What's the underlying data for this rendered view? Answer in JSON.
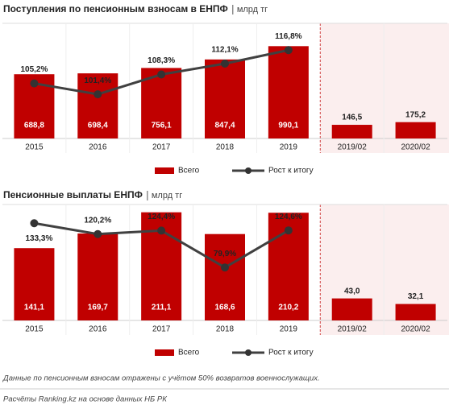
{
  "chart_data": [
    {
      "type": "bar_line",
      "title": "Поступления по пенсионным взносам в ЕНПФ",
      "unit": "млрд тг",
      "categories": [
        "2015",
        "2016",
        "2017",
        "2018",
        "2019",
        "2019/02",
        "2020/02"
      ],
      "ylim": [
        0,
        1200
      ],
      "y2lim": [
        86,
        125
      ],
      "series": [
        {
          "name": "Всего",
          "type": "bar",
          "color": "#c00000",
          "values": [
            688.8,
            698.4,
            756.1,
            847.4,
            990.1,
            146.5,
            175.2
          ],
          "value_labels": [
            "688,8",
            "698,4",
            "756,1",
            "847,4",
            "990,1",
            "146,5",
            "175,2"
          ]
        },
        {
          "name": "Рост к итогу",
          "type": "line",
          "axis": "y2",
          "color": "#404040",
          "values": [
            105.2,
            101.4,
            108.3,
            112.1,
            116.8,
            null,
            null
          ],
          "value_labels": [
            "105,2%",
            "101,4%",
            "108,3%",
            "112,1%",
            "116,8%",
            null,
            null
          ]
        }
      ]
    },
    {
      "type": "bar_line",
      "title": "Пенсионные выплаты ЕНПФ",
      "unit": "млрд тг",
      "categories": [
        "2015",
        "2016",
        "2017",
        "2018",
        "2019",
        "2019/02",
        "2020/02"
      ],
      "ylim": [
        0,
        220
      ],
      "y2lim": [
        16,
        152
      ],
      "series": [
        {
          "name": "Всего",
          "type": "bar",
          "color": "#c00000",
          "values": [
            141.1,
            169.7,
            211.1,
            168.6,
            210.2,
            43.0,
            32.1
          ],
          "value_labels": [
            "141,1",
            "169,7",
            "211,1",
            "168,6",
            "210,2",
            "43,0",
            "32,1"
          ]
        },
        {
          "name": "Рост к итогу",
          "type": "line",
          "axis": "y2",
          "color": "#404040",
          "values": [
            133.3,
            120.2,
            124.4,
            79.9,
            124.6,
            null,
            null
          ],
          "value_labels": [
            "133,3%",
            "120,2%",
            "124,4%",
            "79,9%",
            "124,6%",
            null,
            null
          ]
        }
      ]
    }
  ],
  "notes": [
    "Данные по пенсионным взносам отражены  с учётом 50% возвратов военнослужащих.",
    "Расчёты Ranking.kz на основе данных  НБ РК"
  ]
}
